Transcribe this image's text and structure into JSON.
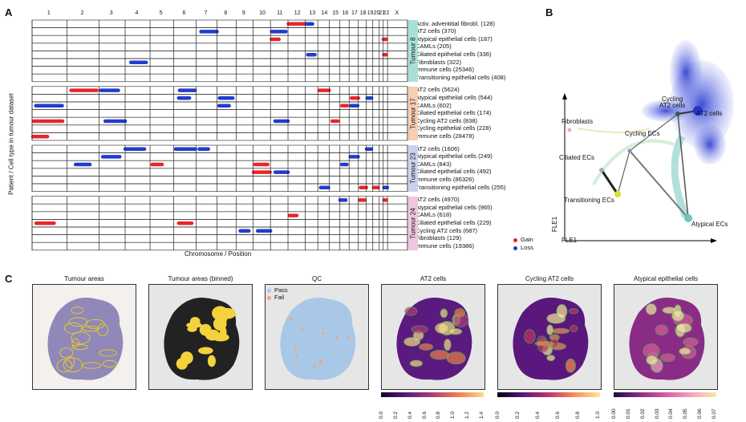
{
  "panels": {
    "A": "A",
    "B": "B",
    "C": "C"
  },
  "heatmap": {
    "chromosomes": [
      "1",
      "2",
      "3",
      "4",
      "5",
      "6",
      "7",
      "8",
      "9",
      "10",
      "11",
      "12",
      "13",
      "14",
      "15",
      "16",
      "17",
      "18",
      "19",
      "20",
      "21",
      "22",
      "X"
    ],
    "y_label": "Patient / Cell type in tumour dataset",
    "x_label": "Chromosome / Position",
    "legend": {
      "gain": "Gain",
      "loss": "Loss",
      "gain_color": "#e8262a",
      "loss_color": "#1f3ccf"
    },
    "groups": [
      {
        "name": "Tumour 8",
        "color": "#a8e0d8",
        "rows": [
          "Activ. adventitial fibrobl. (128)",
          "AT2 cells (370)",
          "Atypical epithelial cells (187)",
          "CAMLs (205)",
          "Ciliated epithelial cells (336)",
          "Fibroblasts (322)",
          "Immune cells (25346)",
          "Transitioning epithelial cells (408)"
        ]
      },
      {
        "name": "Tumour 17",
        "color": "#f7cdb3",
        "rows": [
          "AT2 cells (5624)",
          "Atypical epithelial cells (544)",
          "CAMLs (602)",
          "Ciliated epithelial cells (174)",
          "Cycling AT2 cells (838)",
          "Cycling epithelial cells (228)",
          "Immune cells (28478)"
        ]
      },
      {
        "name": "Tumour 23",
        "color": "#c9d3ee",
        "rows": [
          "AT2 cells (1606)",
          "Atypical epithelial cells (249)",
          "CAMLs (843)",
          "Ciliated epithelial cells (492)",
          "Immune cells (86326)",
          "Transitioning epithelial cells (255)"
        ]
      },
      {
        "name": "Tumour 24",
        "color": "#efc6e0",
        "rows": [
          "AT2 cells (4970)",
          "Atypical epithelial cells (965)",
          "CAMLs (618)",
          "Ciliated epithelial cells (229)",
          "Cycling AT2 cells (687)",
          "Fibroblasts (129)",
          "Immune cells (19386)"
        ]
      }
    ]
  },
  "embedding": {
    "x_label": "FLE1",
    "y_label": "FLE1",
    "labels": [
      "Fibroblasts",
      "Ciliated ECs",
      "Transitioning ECs",
      "Cycling ECs",
      "Cycling AT2 cells",
      "AT2 cells",
      "Atypical ECs"
    ]
  },
  "spatial": {
    "maps": [
      {
        "title": "Tumour areas"
      },
      {
        "title": "Tumour areas (binned)"
      },
      {
        "title": "QC",
        "legend": [
          "Pass",
          "Fail"
        ],
        "legend_colors": [
          "#a9c8e8",
          "#f4a27a"
        ]
      },
      {
        "title": "AT2 cells",
        "ticks": [
          "0.0",
          "0.2",
          "0.4",
          "0.6",
          "0.8",
          "1.0",
          "1.2",
          "1.4"
        ]
      },
      {
        "title": "Cycling AT2 cells",
        "ticks": [
          "0.0",
          "0.2",
          "0.4",
          "0.6",
          "0.8",
          "1.0"
        ]
      },
      {
        "title": "Atypical epithelial cells",
        "ticks": [
          "0.00",
          "0.01",
          "0.02",
          "0.03",
          "0.04",
          "0.05",
          "0.06",
          "0.07"
        ]
      }
    ]
  }
}
